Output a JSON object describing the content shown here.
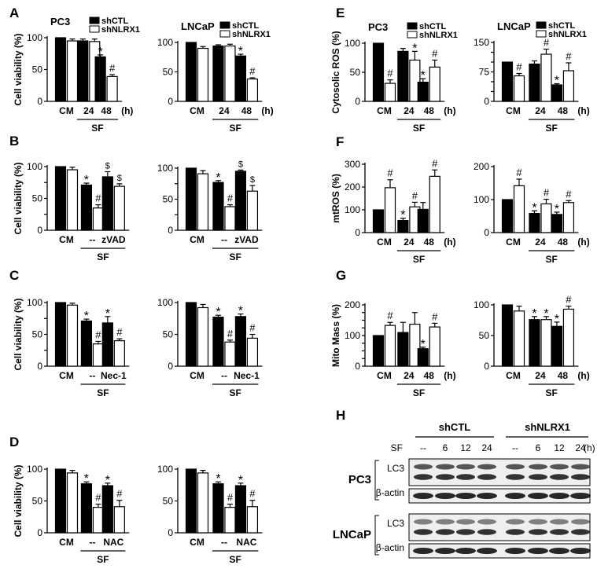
{
  "figure": {
    "panel_letters": [
      "A",
      "B",
      "C",
      "D",
      "E",
      "F",
      "G",
      "H"
    ],
    "hour_unit": "(h)",
    "sf_label": "SF"
  },
  "chart_data": [
    {
      "id": "A-PC3",
      "panel": "A",
      "title": "PC3",
      "type": "bar",
      "ylabel": "Cell viability (%)",
      "ylim": [
        0,
        100
      ],
      "yticks": [
        0,
        50,
        100
      ],
      "categories": [
        "CM",
        "24",
        "48"
      ],
      "group_label": "SF",
      "group_span": [
        1,
        2
      ],
      "unit": "(h)",
      "legend": true,
      "series": [
        {
          "name": "shCTL",
          "values": [
            100,
            95,
            70
          ],
          "errors": [
            0,
            3,
            3
          ]
        },
        {
          "name": "shNLRX1",
          "values": [
            95,
            94,
            39
          ],
          "errors": [
            3,
            4,
            3
          ]
        }
      ],
      "annotations": {
        "shCTL": [
          "",
          "",
          "*"
        ],
        "shNLRX1": [
          "",
          "",
          "#"
        ]
      }
    },
    {
      "id": "A-LNCaP",
      "panel": "A",
      "title": "LNCaP",
      "type": "bar",
      "ylabel": "",
      "ylim": [
        0,
        100
      ],
      "yticks": [
        0,
        50,
        100
      ],
      "categories": [
        "CM",
        "24",
        "48"
      ],
      "group_label": "SF",
      "group_span": [
        1,
        2
      ],
      "unit": "(h)",
      "legend": true,
      "series": [
        {
          "name": "shCTL",
          "values": [
            100,
            94,
            77
          ],
          "errors": [
            0,
            2,
            3
          ]
        },
        {
          "name": "shNLRX1",
          "values": [
            90,
            94,
            38
          ],
          "errors": [
            3,
            3,
            2
          ]
        }
      ],
      "annotations": {
        "shCTL": [
          "",
          "",
          "*"
        ],
        "shNLRX1": [
          "",
          "",
          "#"
        ]
      }
    },
    {
      "id": "B-PC3",
      "panel": "B",
      "title": "",
      "type": "bar",
      "ylabel": "Cell viability (%)",
      "ylim": [
        0,
        100
      ],
      "yticks": [
        0,
        25,
        50,
        75,
        100
      ],
      "categories": [
        "CM",
        "--",
        "zVAD"
      ],
      "group_label": "SF",
      "group_span": [
        1,
        2
      ],
      "unit": "",
      "legend": false,
      "series": [
        {
          "name": "",
          "values": [
            100,
            71,
            84
          ],
          "errors": [
            0,
            3,
            8
          ]
        },
        {
          "name": "",
          "values": [
            95,
            35,
            69
          ],
          "errors": [
            4,
            5,
            4
          ]
        }
      ],
      "annotations": {
        "shCTL": [
          "",
          "*",
          "$"
        ],
        "shNLRX1": [
          "",
          "#",
          "$"
        ]
      }
    },
    {
      "id": "B-LNCaP",
      "panel": "B",
      "title": "",
      "type": "bar",
      "ylabel": "",
      "ylim": [
        0,
        100
      ],
      "yticks": [
        0,
        25,
        50,
        75,
        100
      ],
      "categories": [
        "CM",
        "--",
        "zVAD"
      ],
      "group_label": "SF",
      "group_span": [
        1,
        2
      ],
      "unit": "",
      "legend": false,
      "series": [
        {
          "name": "",
          "values": [
            100,
            77,
            95
          ],
          "errors": [
            0,
            3,
            2
          ]
        },
        {
          "name": "",
          "values": [
            91,
            38,
            63
          ],
          "errors": [
            5,
            3,
            9
          ]
        }
      ],
      "annotations": {
        "shCTL": [
          "",
          "*",
          "$"
        ],
        "shNLRX1": [
          "",
          "#",
          "$"
        ]
      }
    },
    {
      "id": "C-PC3",
      "panel": "C",
      "title": "",
      "type": "bar",
      "ylabel": "Cell viability (%)",
      "ylim": [
        0,
        100
      ],
      "yticks": [
        0,
        25,
        50,
        75,
        100
      ],
      "categories": [
        "CM",
        "--",
        "Nec-1"
      ],
      "group_label": "SF",
      "group_span": [
        1,
        2
      ],
      "unit": "",
      "legend": false,
      "series": [
        {
          "name": "",
          "values": [
            100,
            71,
            68
          ],
          "errors": [
            0,
            3,
            10
          ]
        },
        {
          "name": "",
          "values": [
            96,
            35,
            40
          ],
          "errors": [
            3,
            4,
            3
          ]
        }
      ],
      "annotations": {
        "shCTL": [
          "",
          "*",
          "*"
        ],
        "shNLRX1": [
          "",
          "#",
          "#"
        ]
      }
    },
    {
      "id": "C-LNCaP",
      "panel": "C",
      "title": "",
      "type": "bar",
      "ylabel": "",
      "ylim": [
        0,
        100
      ],
      "yticks": [
        0,
        50,
        100
      ],
      "categories": [
        "CM",
        "--",
        "Nec-1"
      ],
      "group_label": "SF",
      "group_span": [
        1,
        2
      ],
      "unit": "",
      "legend": false,
      "series": [
        {
          "name": "",
          "values": [
            100,
            77,
            78
          ],
          "errors": [
            0,
            3,
            4
          ]
        },
        {
          "name": "",
          "values": [
            92,
            38,
            44
          ],
          "errors": [
            5,
            3,
            6
          ]
        }
      ],
      "annotations": {
        "shCTL": [
          "",
          "*",
          "*"
        ],
        "shNLRX1": [
          "",
          "#",
          "#"
        ]
      }
    },
    {
      "id": "D-PC3",
      "panel": "D",
      "title": "",
      "type": "bar",
      "ylabel": "Cell viability (%)",
      "ylim": [
        0,
        100
      ],
      "yticks": [
        0,
        50,
        100
      ],
      "categories": [
        "CM",
        "--",
        "NAC"
      ],
      "group_label": "SF",
      "group_span": [
        1,
        2
      ],
      "unit": "",
      "legend": false,
      "series": [
        {
          "name": "",
          "values": [
            100,
            77,
            74
          ],
          "errors": [
            0,
            3,
            4
          ]
        },
        {
          "name": "",
          "values": [
            94,
            40,
            41
          ],
          "errors": [
            4,
            5,
            10
          ]
        }
      ],
      "annotations": {
        "shCTL": [
          "",
          "*",
          "*"
        ],
        "shNLRX1": [
          "",
          "#",
          "#"
        ]
      }
    },
    {
      "id": "D-LNCaP",
      "panel": "D",
      "title": "",
      "type": "bar",
      "ylabel": "",
      "ylim": [
        0,
        100
      ],
      "yticks": [
        0,
        50,
        100
      ],
      "categories": [
        "CM",
        "--",
        "NAC"
      ],
      "group_label": "SF",
      "group_span": [
        1,
        2
      ],
      "unit": "",
      "legend": false,
      "series": [
        {
          "name": "",
          "values": [
            100,
            77,
            74
          ],
          "errors": [
            0,
            3,
            4
          ]
        },
        {
          "name": "",
          "values": [
            94,
            40,
            41
          ],
          "errors": [
            4,
            5,
            10
          ]
        }
      ],
      "annotations": {
        "shCTL": [
          "",
          "*",
          "*"
        ],
        "shNLRX1": [
          "",
          "#",
          "#"
        ]
      }
    },
    {
      "id": "E-PC3",
      "panel": "E",
      "title": "PC3",
      "type": "bar",
      "ylabel": "Cytosolic ROS (%)",
      "ylim": [
        0,
        100
      ],
      "yticks": [
        0,
        50,
        100
      ],
      "categories": [
        "CM",
        "24",
        "48"
      ],
      "group_label": "SF",
      "group_span": [
        1,
        2
      ],
      "unit": "(h)",
      "legend": true,
      "series": [
        {
          "name": "shCTL",
          "values": [
            100,
            86,
            33
          ],
          "errors": [
            0,
            5,
            6
          ]
        },
        {
          "name": "shNLRX1",
          "values": [
            31,
            71,
            59
          ],
          "errors": [
            6,
            15,
            12
          ]
        }
      ],
      "annotations": {
        "shCTL": [
          "",
          "",
          "*"
        ],
        "shNLRX1": [
          "#",
          "*",
          "#"
        ]
      }
    },
    {
      "id": "E-LNCaP",
      "panel": "E",
      "title": "LNCaP",
      "type": "bar",
      "ylabel": "",
      "ylim": [
        0,
        150
      ],
      "yticks": [
        0,
        25,
        50,
        75,
        100,
        125,
        150
      ],
      "categories": [
        "CM",
        "24",
        "48"
      ],
      "group_label": "SF",
      "group_span": [
        1,
        2
      ],
      "unit": "(h)",
      "legend": true,
      "series": [
        {
          "name": "shCTL",
          "values": [
            100,
            95,
            42
          ],
          "errors": [
            0,
            8,
            3
          ]
        },
        {
          "name": "shNLRX1",
          "values": [
            65,
            120,
            78
          ],
          "errors": [
            6,
            13,
            20
          ]
        }
      ],
      "annotations": {
        "shCTL": [
          "",
          "",
          "*"
        ],
        "shNLRX1": [
          "#",
          "#",
          "#"
        ]
      }
    },
    {
      "id": "F-PC3",
      "panel": "F",
      "title": "",
      "type": "bar",
      "ylabel": "mtROS (%)",
      "ylim": [
        0,
        300
      ],
      "yticks": [
        0,
        100,
        200,
        300
      ],
      "categories": [
        "CM",
        "24",
        "48"
      ],
      "group_label": "SF",
      "group_span": [
        1,
        2
      ],
      "unit": "(h)",
      "legend": false,
      "series": [
        {
          "name": "",
          "values": [
            100,
            53,
            102
          ],
          "errors": [
            0,
            10,
            30
          ]
        },
        {
          "name": "",
          "values": [
            197,
            113,
            247
          ],
          "errors": [
            35,
            20,
            28
          ]
        }
      ],
      "annotations": {
        "shCTL": [
          "",
          "*",
          ""
        ],
        "shNLRX1": [
          "#",
          "#",
          "#"
        ]
      }
    },
    {
      "id": "F-LNCaP",
      "panel": "F",
      "title": "",
      "type": "bar",
      "ylabel": "",
      "ylim": [
        0,
        200
      ],
      "yticks": [
        0,
        100,
        200
      ],
      "categories": [
        "CM",
        "24",
        "48"
      ],
      "group_label": "SF",
      "group_span": [
        1,
        2
      ],
      "unit": "(h)",
      "legend": false,
      "series": [
        {
          "name": "",
          "values": [
            100,
            58,
            55
          ],
          "errors": [
            0,
            8,
            7
          ]
        },
        {
          "name": "",
          "values": [
            142,
            87,
            91
          ],
          "errors": [
            20,
            14,
            6
          ]
        }
      ],
      "annotations": {
        "shCTL": [
          "",
          "*",
          "*"
        ],
        "shNLRX1": [
          "#",
          "#",
          "#"
        ]
      }
    },
    {
      "id": "G-PC3",
      "panel": "G",
      "title": "",
      "type": "bar",
      "ylabel": "Mito Mass (%)",
      "ylim": [
        0,
        200
      ],
      "yticks": [
        0,
        25,
        50,
        75,
        100,
        125,
        150,
        175,
        200
      ],
      "categories": [
        "CM",
        "24",
        "48"
      ],
      "group_label": "SF",
      "group_span": [
        1,
        2
      ],
      "unit": "(h)",
      "legend": false,
      "series": [
        {
          "name": "",
          "values": [
            100,
            110,
            57
          ],
          "errors": [
            0,
            33,
            5
          ]
        },
        {
          "name": "",
          "values": [
            133,
            137,
            128
          ],
          "errors": [
            10,
            38,
            12
          ]
        }
      ],
      "annotations": {
        "shCTL": [
          "",
          "",
          "*"
        ],
        "shNLRX1": [
          "#",
          "",
          "#"
        ]
      }
    },
    {
      "id": "G-LNCaP",
      "panel": "G",
      "title": "",
      "type": "bar",
      "ylabel": "",
      "ylim": [
        0,
        100
      ],
      "yticks": [
        0,
        50,
        100
      ],
      "categories": [
        "CM",
        "24",
        "48"
      ],
      "group_label": "SF",
      "group_span": [
        1,
        2
      ],
      "unit": "(h)",
      "legend": false,
      "series": [
        {
          "name": "",
          "values": [
            100,
            76,
            65
          ],
          "errors": [
            0,
            5,
            7
          ]
        },
        {
          "name": "",
          "values": [
            90,
            76,
            93
          ],
          "errors": [
            8,
            5,
            5
          ]
        }
      ],
      "annotations": {
        "shCTL": [
          "",
          "*",
          "*"
        ],
        "shNLRX1": [
          "",
          "*",
          "#"
        ]
      }
    }
  ],
  "blot": {
    "panel": "H",
    "groups": [
      "shCTL",
      "shNLRX1"
    ],
    "sf_label": "SF",
    "lanes": [
      "--",
      "6",
      "12",
      "24",
      "--",
      "6",
      "12",
      "24"
    ],
    "unit": "(h)",
    "cell_lines": [
      {
        "name": "PC3",
        "rows": [
          "LC3",
          "β-actin"
        ]
      },
      {
        "name": "LNCaP",
        "rows": [
          "LC3",
          "β-actin"
        ]
      }
    ]
  }
}
